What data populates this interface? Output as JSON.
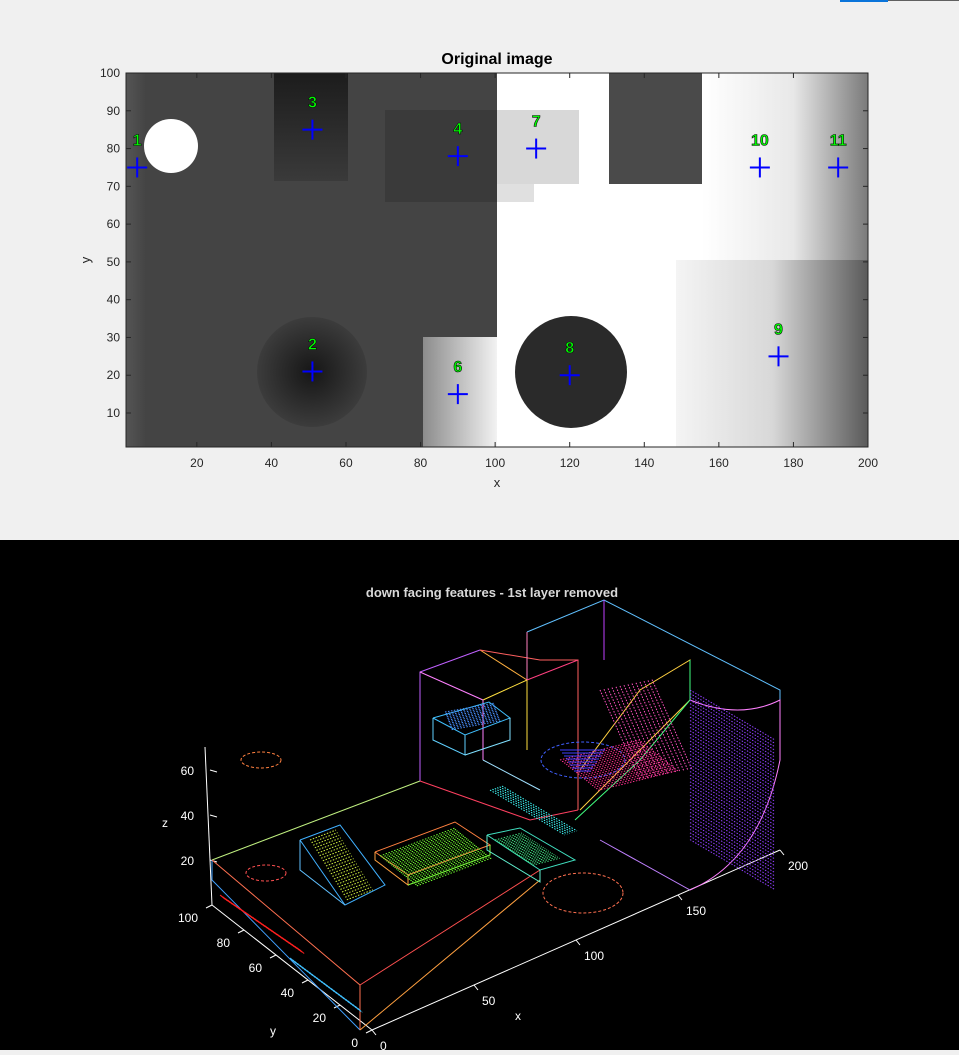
{
  "figure1": {
    "title": "Original image",
    "xlabel": "x",
    "ylabel": "y",
    "xticks": [
      "20",
      "40",
      "60",
      "80",
      "100",
      "120",
      "140",
      "160",
      "180",
      "200"
    ],
    "yticks": [
      "10",
      "20",
      "30",
      "40",
      "50",
      "60",
      "70",
      "80",
      "90",
      "100"
    ]
  },
  "figure2": {
    "title": "down facing features - 1st layer removed",
    "zlabel": "z",
    "ylabel": "y",
    "xlabel": "x",
    "zticks": [
      "20",
      "40",
      "60"
    ],
    "yticks": [
      "100",
      "80",
      "60",
      "40",
      "20",
      "0"
    ],
    "xticks": [
      "0",
      "50",
      "100",
      "150",
      "200"
    ]
  },
  "chart_data": [
    {
      "type": "heatmap",
      "title": "Original image",
      "xlabel": "x",
      "ylabel": "y",
      "xlim": [
        1,
        200
      ],
      "ylim": [
        1,
        100
      ],
      "colormap": "gray",
      "markers": [
        {
          "label": "1",
          "x": 4,
          "y": 75
        },
        {
          "label": "2",
          "x": 51,
          "y": 21
        },
        {
          "label": "3",
          "x": 51,
          "y": 85
        },
        {
          "label": "4",
          "x": 90,
          "y": 78
        },
        {
          "label": "6",
          "x": 90,
          "y": 15
        },
        {
          "label": "7",
          "x": 111,
          "y": 80
        },
        {
          "label": "8",
          "x": 120,
          "y": 20
        },
        {
          "label": "9",
          "x": 176,
          "y": 25
        },
        {
          "label": "10",
          "x": 171,
          "y": 75
        },
        {
          "label": "11",
          "x": 192,
          "y": 75
        }
      ],
      "marker_color": "#0000ff",
      "label_color": "#00ff00"
    },
    {
      "type": "scatter",
      "title": "down facing features - 1st layer removed",
      "xlabel": "x",
      "ylabel": "y",
      "zlabel": "z",
      "xlim": [
        0,
        200
      ],
      "ylim": [
        0,
        100
      ],
      "zlim": [
        10,
        70
      ],
      "background": "#000000"
    }
  ]
}
